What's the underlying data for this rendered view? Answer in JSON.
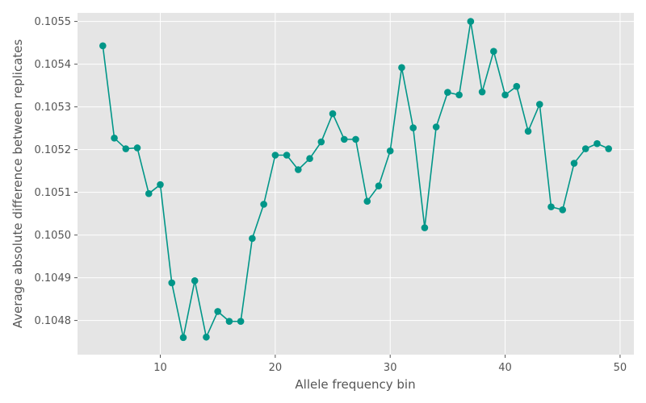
{
  "chart_data": {
    "type": "line",
    "title": "",
    "xlabel": "Allele frequency bin",
    "ylabel": "Average absolute difference between replicates",
    "xlim": [
      2.8,
      51.2
    ],
    "ylim": [
      0.10472,
      0.10552
    ],
    "xticks": [
      10,
      20,
      30,
      40,
      50
    ],
    "yticks": [
      0.1048,
      0.1049,
      0.105,
      0.1051,
      0.1052,
      0.1053,
      0.1054,
      0.1055
    ],
    "ytick_labels": [
      "0.1048",
      "0.1049",
      "0.1050",
      "0.1051",
      "0.1052",
      "0.1053",
      "0.1054",
      "0.1055"
    ],
    "grid": true,
    "color": "#009688",
    "series": [
      {
        "x": [
          5,
          6,
          7,
          8,
          9,
          10,
          11,
          12,
          13,
          14,
          15,
          16,
          17,
          18,
          19,
          20,
          21,
          22,
          23,
          24,
          25,
          26,
          27,
          28,
          29,
          30,
          31,
          32,
          33,
          34,
          35,
          36,
          37,
          38,
          39,
          40,
          41,
          42,
          43,
          44,
          45,
          46,
          47,
          48,
          49
        ],
        "y": [
          0.105443,
          0.105227,
          0.105202,
          0.105204,
          0.105097,
          0.105118,
          0.104888,
          0.10476,
          0.104893,
          0.104761,
          0.104821,
          0.104798,
          0.104798,
          0.104992,
          0.105072,
          0.105187,
          0.105187,
          0.105153,
          0.105179,
          0.105218,
          0.105284,
          0.105224,
          0.105224,
          0.105079,
          0.105115,
          0.105197,
          0.105392,
          0.105251,
          0.105017,
          0.105253,
          0.105334,
          0.105328,
          0.1055,
          0.105335,
          0.10543,
          0.105328,
          0.105348,
          0.105243,
          0.105306,
          0.105066,
          0.105059,
          0.105168,
          0.105202,
          0.105214,
          0.105202
        ]
      }
    ]
  }
}
